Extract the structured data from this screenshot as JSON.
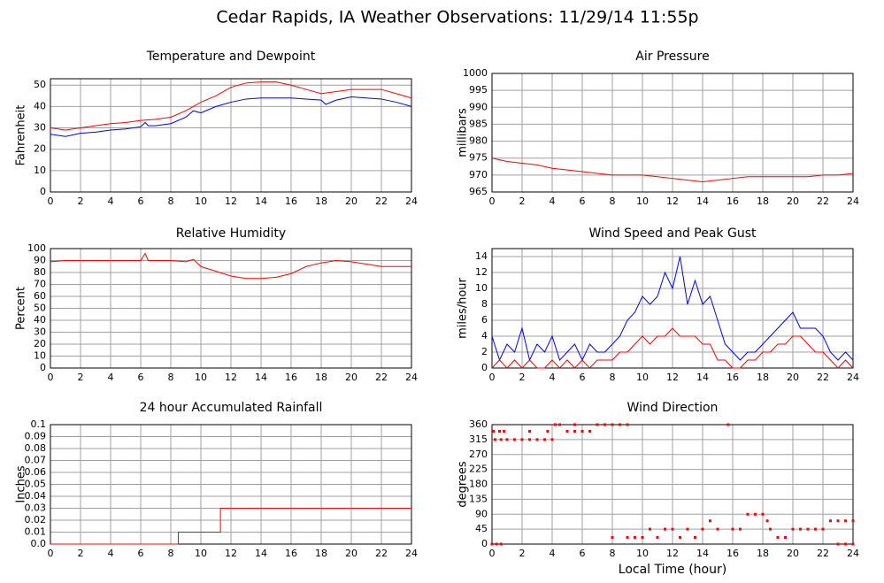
{
  "title": "Cedar Rapids, IA Weather Observations: 11/29/14 11:55p",
  "chart_data": [
    {
      "type": "line",
      "title": "Temperature and Dewpoint",
      "ylabel": "Fahrenheit",
      "xlim": [
        0,
        24
      ],
      "xticks": [
        0,
        2,
        4,
        6,
        8,
        10,
        12,
        14,
        16,
        18,
        20,
        22,
        24
      ],
      "ylim": [
        0,
        53
      ],
      "yticks": [
        0,
        10,
        20,
        30,
        40,
        50
      ],
      "grid": true,
      "series": [
        {
          "color": "#ff0000",
          "x": [
            0,
            1,
            2,
            3,
            4,
            5,
            6,
            7,
            8,
            9,
            10,
            11,
            12,
            13,
            14,
            15,
            16,
            17,
            18,
            19,
            20,
            21,
            22,
            23,
            24
          ],
          "values": [
            30,
            29,
            30,
            31,
            32,
            32.5,
            33.5,
            34,
            35,
            38,
            42,
            45,
            49,
            51,
            51.5,
            51.5,
            50,
            48,
            46,
            47,
            48,
            48,
            48,
            46,
            44
          ]
        },
        {
          "color": "#0000ff",
          "x": [
            0,
            1,
            2,
            3,
            4,
            5,
            6,
            6.3,
            6.5,
            7,
            8,
            9,
            9.5,
            10,
            11,
            12,
            13,
            14,
            15,
            16,
            17,
            18,
            18.3,
            19,
            20,
            21,
            22,
            23,
            24
          ],
          "values": [
            27,
            26,
            27.5,
            28,
            29,
            29.5,
            30.5,
            32.5,
            31,
            31,
            32,
            35,
            38,
            37,
            40,
            42,
            43.5,
            44,
            44,
            44,
            43.5,
            43,
            41,
            43,
            44.5,
            44,
            43.5,
            42,
            40
          ]
        }
      ]
    },
    {
      "type": "line",
      "title": "Air Pressure",
      "ylabel": "millibars",
      "xlim": [
        0,
        24
      ],
      "xticks": [
        0,
        2,
        4,
        6,
        8,
        10,
        12,
        14,
        16,
        18,
        20,
        22,
        24
      ],
      "ylim": [
        965,
        1000
      ],
      "yticks": [
        965,
        970,
        975,
        980,
        985,
        990,
        995,
        1000
      ],
      "grid": true,
      "series": [
        {
          "color": "#ff0000",
          "x": [
            0,
            1,
            2,
            3,
            4,
            5,
            6,
            7,
            8,
            9,
            10,
            11,
            12,
            13,
            14,
            15,
            16,
            17,
            18,
            19,
            20,
            21,
            22,
            23,
            24
          ],
          "values": [
            975,
            974,
            973.5,
            973,
            972,
            971.5,
            971,
            970.5,
            970,
            970,
            970,
            969.5,
            969,
            968.5,
            968,
            968.5,
            969,
            969.5,
            969.5,
            969.5,
            969.5,
            969.5,
            970,
            970,
            970.5
          ]
        }
      ]
    },
    {
      "type": "line",
      "title": "Relative Humidity",
      "ylabel": "Percent",
      "xlim": [
        0,
        24
      ],
      "xticks": [
        0,
        2,
        4,
        6,
        8,
        10,
        12,
        14,
        16,
        18,
        20,
        22,
        24
      ],
      "ylim": [
        0,
        100
      ],
      "yticks": [
        0,
        10,
        20,
        30,
        40,
        50,
        60,
        70,
        80,
        90,
        100
      ],
      "grid": true,
      "series": [
        {
          "color": "#ff0000",
          "x": [
            0,
            1,
            2,
            3,
            4,
            5,
            6,
            6.3,
            6.5,
            7,
            8,
            9,
            9.5,
            10,
            11,
            12,
            13,
            14,
            15,
            16,
            17,
            18,
            19,
            20,
            21,
            22,
            23,
            24
          ],
          "values": [
            89,
            90,
            90,
            90,
            90,
            90,
            90,
            96,
            90,
            90,
            90,
            89,
            91,
            85,
            81,
            77,
            75,
            75,
            76,
            79,
            85,
            88,
            90,
            89,
            87,
            85,
            85,
            85
          ]
        }
      ]
    },
    {
      "type": "line",
      "title": "Wind Speed and Peak Gust",
      "ylabel": "miles/hour",
      "xlim": [
        0,
        24
      ],
      "xticks": [
        0,
        2,
        4,
        6,
        8,
        10,
        12,
        14,
        16,
        18,
        20,
        22,
        24
      ],
      "ylim": [
        0,
        15
      ],
      "yticks": [
        0,
        2,
        4,
        6,
        8,
        10,
        12,
        14
      ],
      "grid": true,
      "series": [
        {
          "color": "#0000ff",
          "x": [
            0,
            0.5,
            1,
            1.5,
            2,
            2.5,
            3,
            3.5,
            4,
            4.5,
            5,
            5.5,
            6,
            6.5,
            7,
            7.5,
            8,
            8.5,
            9,
            9.5,
            10,
            10.5,
            11,
            11.5,
            12,
            12.5,
            13,
            13.5,
            14,
            14.5,
            15,
            15.5,
            16,
            16.5,
            17,
            17.5,
            18,
            18.5,
            19,
            19.5,
            20,
            20.5,
            21,
            21.5,
            22,
            22.5,
            23,
            23.5,
            24
          ],
          "values": [
            4,
            1,
            3,
            2,
            5,
            1,
            3,
            2,
            4,
            1,
            2,
            3,
            1,
            3,
            2,
            2,
            3,
            4,
            6,
            7,
            9,
            8,
            9,
            12,
            10,
            14,
            8,
            11,
            8,
            9,
            6,
            3,
            2,
            1,
            2,
            2,
            3,
            4,
            5,
            6,
            7,
            5,
            5,
            5,
            4,
            2,
            1,
            2,
            1
          ]
        },
        {
          "color": "#ff0000",
          "x": [
            0,
            0.5,
            1,
            1.5,
            2,
            2.5,
            3,
            3.5,
            4,
            4.5,
            5,
            5.5,
            6,
            6.5,
            7,
            7.5,
            8,
            8.5,
            9,
            9.5,
            10,
            10.5,
            11,
            11.5,
            12,
            12.5,
            13,
            13.5,
            14,
            14.5,
            15,
            15.5,
            16,
            16.5,
            17,
            17.5,
            18,
            18.5,
            19,
            19.5,
            20,
            20.5,
            21,
            21.5,
            22,
            22.5,
            23,
            23.5,
            24
          ],
          "values": [
            0,
            1,
            0,
            1,
            0,
            1,
            0,
            0,
            1,
            0,
            1,
            0,
            1,
            0,
            1,
            1,
            1,
            2,
            2,
            3,
            4,
            3,
            4,
            4,
            5,
            4,
            4,
            4,
            3,
            3,
            1,
            1,
            0,
            0,
            1,
            1,
            2,
            2,
            3,
            3,
            4,
            4,
            3,
            2,
            2,
            1,
            0,
            1,
            0
          ]
        }
      ]
    },
    {
      "type": "line",
      "title": "24 hour Accumulated Rainfall",
      "ylabel": "Inches",
      "xlim": [
        0,
        24
      ],
      "xticks": [
        0,
        2,
        4,
        6,
        8,
        10,
        12,
        14,
        16,
        18,
        20,
        22,
        24
      ],
      "ylim": [
        0,
        0.1
      ],
      "yticks": [
        {
          "value": 0,
          "label": "0.0"
        },
        0.01,
        0.02,
        0.03,
        0.04,
        0.05,
        0.06,
        0.07,
        0.08,
        0.09,
        0.1
      ],
      "grid": true,
      "series": [
        {
          "color": "#ff0000",
          "x": [
            0,
            8.5,
            8.5,
            11.3,
            11.3,
            24
          ],
          "values": [
            0,
            0,
            0.01,
            0.01,
            0.03,
            0.03
          ]
        }
      ]
    },
    {
      "type": "scatter",
      "title": "Wind Direction",
      "ylabel": "degrees",
      "xlabel": "Local Time (hour)",
      "xlim": [
        0,
        24
      ],
      "xticks": [
        0,
        2,
        4,
        6,
        8,
        10,
        12,
        14,
        16,
        18,
        20,
        22,
        24
      ],
      "ylim": [
        0,
        360
      ],
      "yticks": [
        0,
        45,
        90,
        135,
        180,
        225,
        270,
        315,
        360
      ],
      "grid": true,
      "series": [
        {
          "color": "#ff0000",
          "x": [
            0,
            0.3,
            0.6,
            0.1,
            0.5,
            0.8,
            0.2,
            0.6,
            1,
            1.5,
            2,
            2.5,
            3,
            3.5,
            4,
            2.5,
            3.7,
            4.2,
            4.5,
            5,
            5.5,
            6,
            6.5,
            5.5,
            7,
            7.5,
            8,
            8.5,
            9,
            8,
            9,
            9.5,
            10,
            10.5,
            11,
            11.5,
            12,
            12.5,
            13,
            13.5,
            14,
            14.5,
            15,
            15.7,
            16,
            16.5,
            17,
            17.5,
            18,
            18.3,
            18.5,
            19,
            19.5,
            20,
            20.5,
            21,
            21.5,
            22,
            22.5,
            23,
            23.5,
            24,
            23,
            23.5,
            24
          ],
          "values": [
            0,
            0,
            0,
            340,
            340,
            340,
            315,
            315,
            315,
            315,
            315,
            315,
            315,
            315,
            315,
            340,
            340,
            360,
            360,
            340,
            340,
            340,
            340,
            360,
            360,
            360,
            360,
            360,
            360,
            20,
            20,
            20,
            20,
            45,
            20,
            45,
            45,
            20,
            45,
            20,
            45,
            70,
            45,
            360,
            45,
            45,
            90,
            90,
            90,
            70,
            45,
            20,
            20,
            45,
            45,
            45,
            45,
            45,
            70,
            70,
            70,
            70,
            0,
            0,
            0
          ]
        }
      ]
    }
  ]
}
